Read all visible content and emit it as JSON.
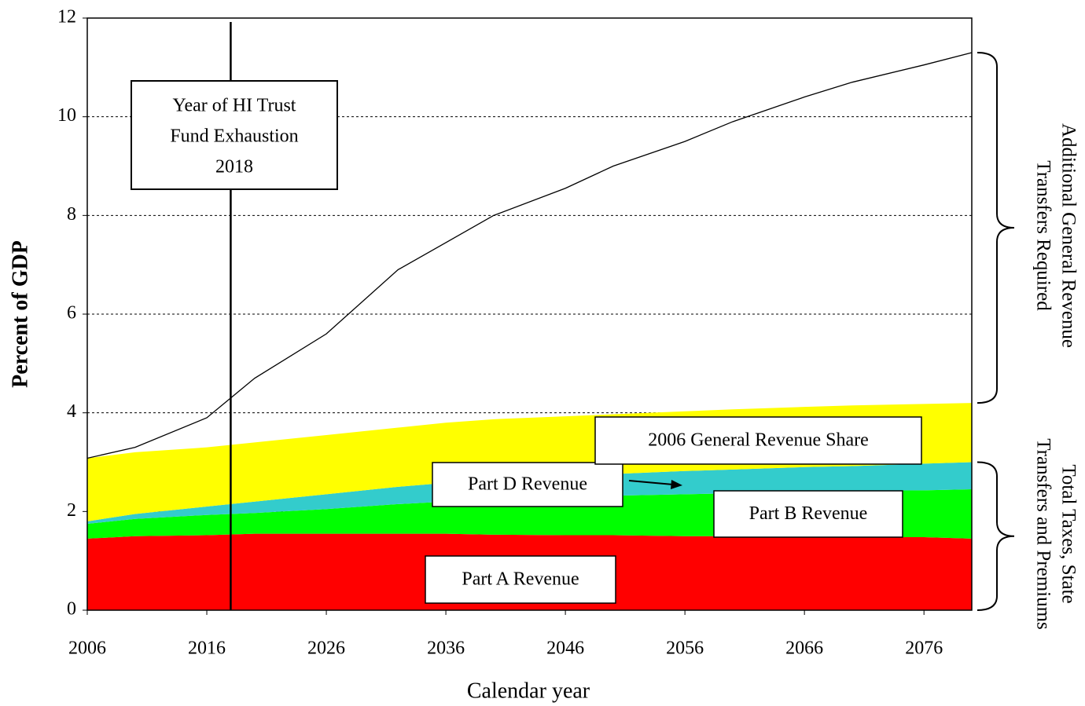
{
  "chart_data": {
    "type": "area",
    "xlabel": "Calendar year",
    "ylabel": "Percent of GDP",
    "x": [
      2006,
      2010,
      2016,
      2020,
      2026,
      2032,
      2036,
      2040,
      2046,
      2050,
      2056,
      2060,
      2066,
      2070,
      2076,
      2080
    ],
    "series": [
      {
        "name": "Part A Revenue",
        "color": "#ff0000",
        "values": [
          1.45,
          1.5,
          1.52,
          1.55,
          1.55,
          1.55,
          1.55,
          1.53,
          1.52,
          1.52,
          1.5,
          1.5,
          1.48,
          1.48,
          1.48,
          1.45
        ]
      },
      {
        "name": "Part B Revenue",
        "color": "#00ff00",
        "values": [
          0.3,
          0.35,
          0.41,
          0.42,
          0.5,
          0.6,
          0.65,
          0.72,
          0.78,
          0.8,
          0.85,
          0.87,
          0.92,
          0.94,
          0.95,
          1.0
        ]
      },
      {
        "name": "Part D Revenue",
        "color": "#33cccc",
        "values": [
          0.05,
          0.1,
          0.17,
          0.23,
          0.3,
          0.35,
          0.38,
          0.4,
          0.42,
          0.44,
          0.47,
          0.48,
          0.5,
          0.5,
          0.54,
          0.55
        ]
      },
      {
        "name": "2006 General Revenue Share",
        "color": "#ffff00",
        "values": [
          1.28,
          1.25,
          1.2,
          1.2,
          1.2,
          1.2,
          1.22,
          1.22,
          1.21,
          1.21,
          1.21,
          1.22,
          1.22,
          1.23,
          1.21,
          1.2
        ]
      },
      {
        "type": "line",
        "color": "#000000",
        "values": [
          3.08,
          3.3,
          3.9,
          4.7,
          5.6,
          6.9,
          7.45,
          8.0,
          8.55,
          9.0,
          9.5,
          9.9,
          10.4,
          10.7,
          11.05,
          11.3
        ]
      }
    ],
    "xlim": [
      2006,
      2080
    ],
    "xticks": [
      2006,
      2016,
      2026,
      2036,
      2046,
      2056,
      2066,
      2076
    ],
    "ylim": [
      0,
      12
    ],
    "yticks": [
      0,
      2,
      4,
      6,
      8,
      10,
      12
    ],
    "grid": true,
    "annotation": {
      "lines": [
        "Year of HI Trust",
        "Fund Exhaustion"
      ],
      "x": 2018
    },
    "brace_labels": [
      {
        "lines": [
          "Additional General Revenue",
          "Transfers Required"
        ]
      },
      {
        "lines": [
          "Total Taxes, State",
          "Transfers and Premiums"
        ]
      }
    ]
  }
}
